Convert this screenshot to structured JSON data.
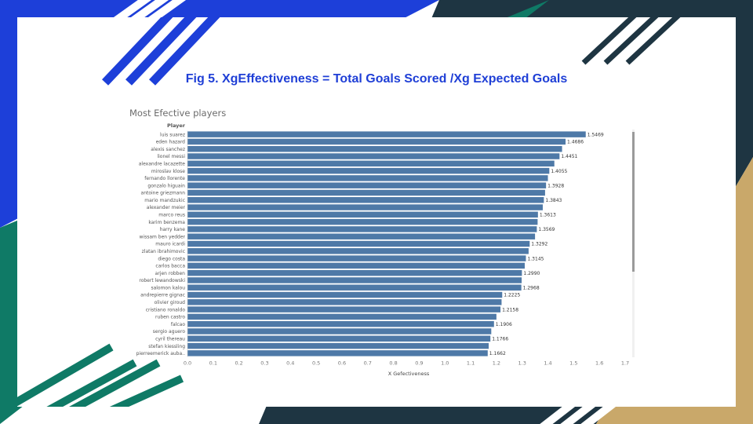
{
  "slide": {
    "title": "Fig 5. XgEffectiveness = Total Goals Scored /Xg Expected Goals",
    "colors": {
      "title": "#1f3fd6",
      "bg_blue": "#1d3fd9",
      "bg_dark": "#1e3542",
      "bg_teal": "#0f7a66",
      "bg_gold": "#c9a86a"
    }
  },
  "chart_data": {
    "type": "bar",
    "orientation": "horizontal",
    "title": "Most Efective players",
    "category_header": "Player",
    "xlabel": "X Gefectiveness",
    "xlim": [
      0.0,
      1.7
    ],
    "xticks": [
      "0.0",
      "0.1",
      "0.2",
      "0.3",
      "0.4",
      "0.5",
      "0.6",
      "0.7",
      "0.8",
      "0.9",
      "1.0",
      "1.1",
      "1.2",
      "1.3",
      "1.4",
      "1.5",
      "1.6",
      "1.7"
    ],
    "bar_color": "#4e79a7",
    "grid": false,
    "categories": [
      "luis suarez",
      "eden hazard",
      "alexis sanchez",
      "lionel messi",
      "alexandre lacazette",
      "miroslav klose",
      "fernando llorente",
      "gonzalo higuain",
      "antoine griezmann",
      "mario mandzukic",
      "alexander meier",
      "marco reus",
      "karim benzema",
      "harry kane",
      "wissam ben yedder",
      "mauro icardi",
      "zlatan ibrahimovic",
      "diego costa",
      "carlos bacca",
      "arjen robben",
      "robert lewandowski",
      "salomon kalou",
      "andrepierre gignac",
      "olivier giroud",
      "cristiano ronaldo",
      "ruben castro",
      "falcao",
      "sergio aguero",
      "cyril thereau",
      "stefan kiessling",
      "pierreemerick auba.."
    ],
    "values": [
      1.5469,
      1.4686,
      1.455,
      1.4451,
      1.425,
      1.4055,
      1.4,
      1.3928,
      1.389,
      1.3843,
      1.38,
      1.3613,
      1.36,
      1.3569,
      1.35,
      1.3292,
      1.325,
      1.3145,
      1.31,
      1.299,
      1.298,
      1.2968,
      1.2225,
      1.22,
      1.2158,
      1.2,
      1.1906,
      1.18,
      1.1766,
      1.17,
      1.1662
    ],
    "value_labels": [
      "1.5469",
      "1.4686",
      "",
      "1.4451",
      "",
      "1.4055",
      "",
      "1.3928",
      "",
      "1.3843",
      "",
      "1.3613",
      "",
      "1.3569",
      "",
      "1.3292",
      "",
      "1.3145",
      "",
      "1.2990",
      "",
      "1.2968",
      "1.2225",
      "",
      "1.2158",
      "",
      "1.1906",
      "",
      "1.1766",
      "",
      "1.1662"
    ]
  }
}
